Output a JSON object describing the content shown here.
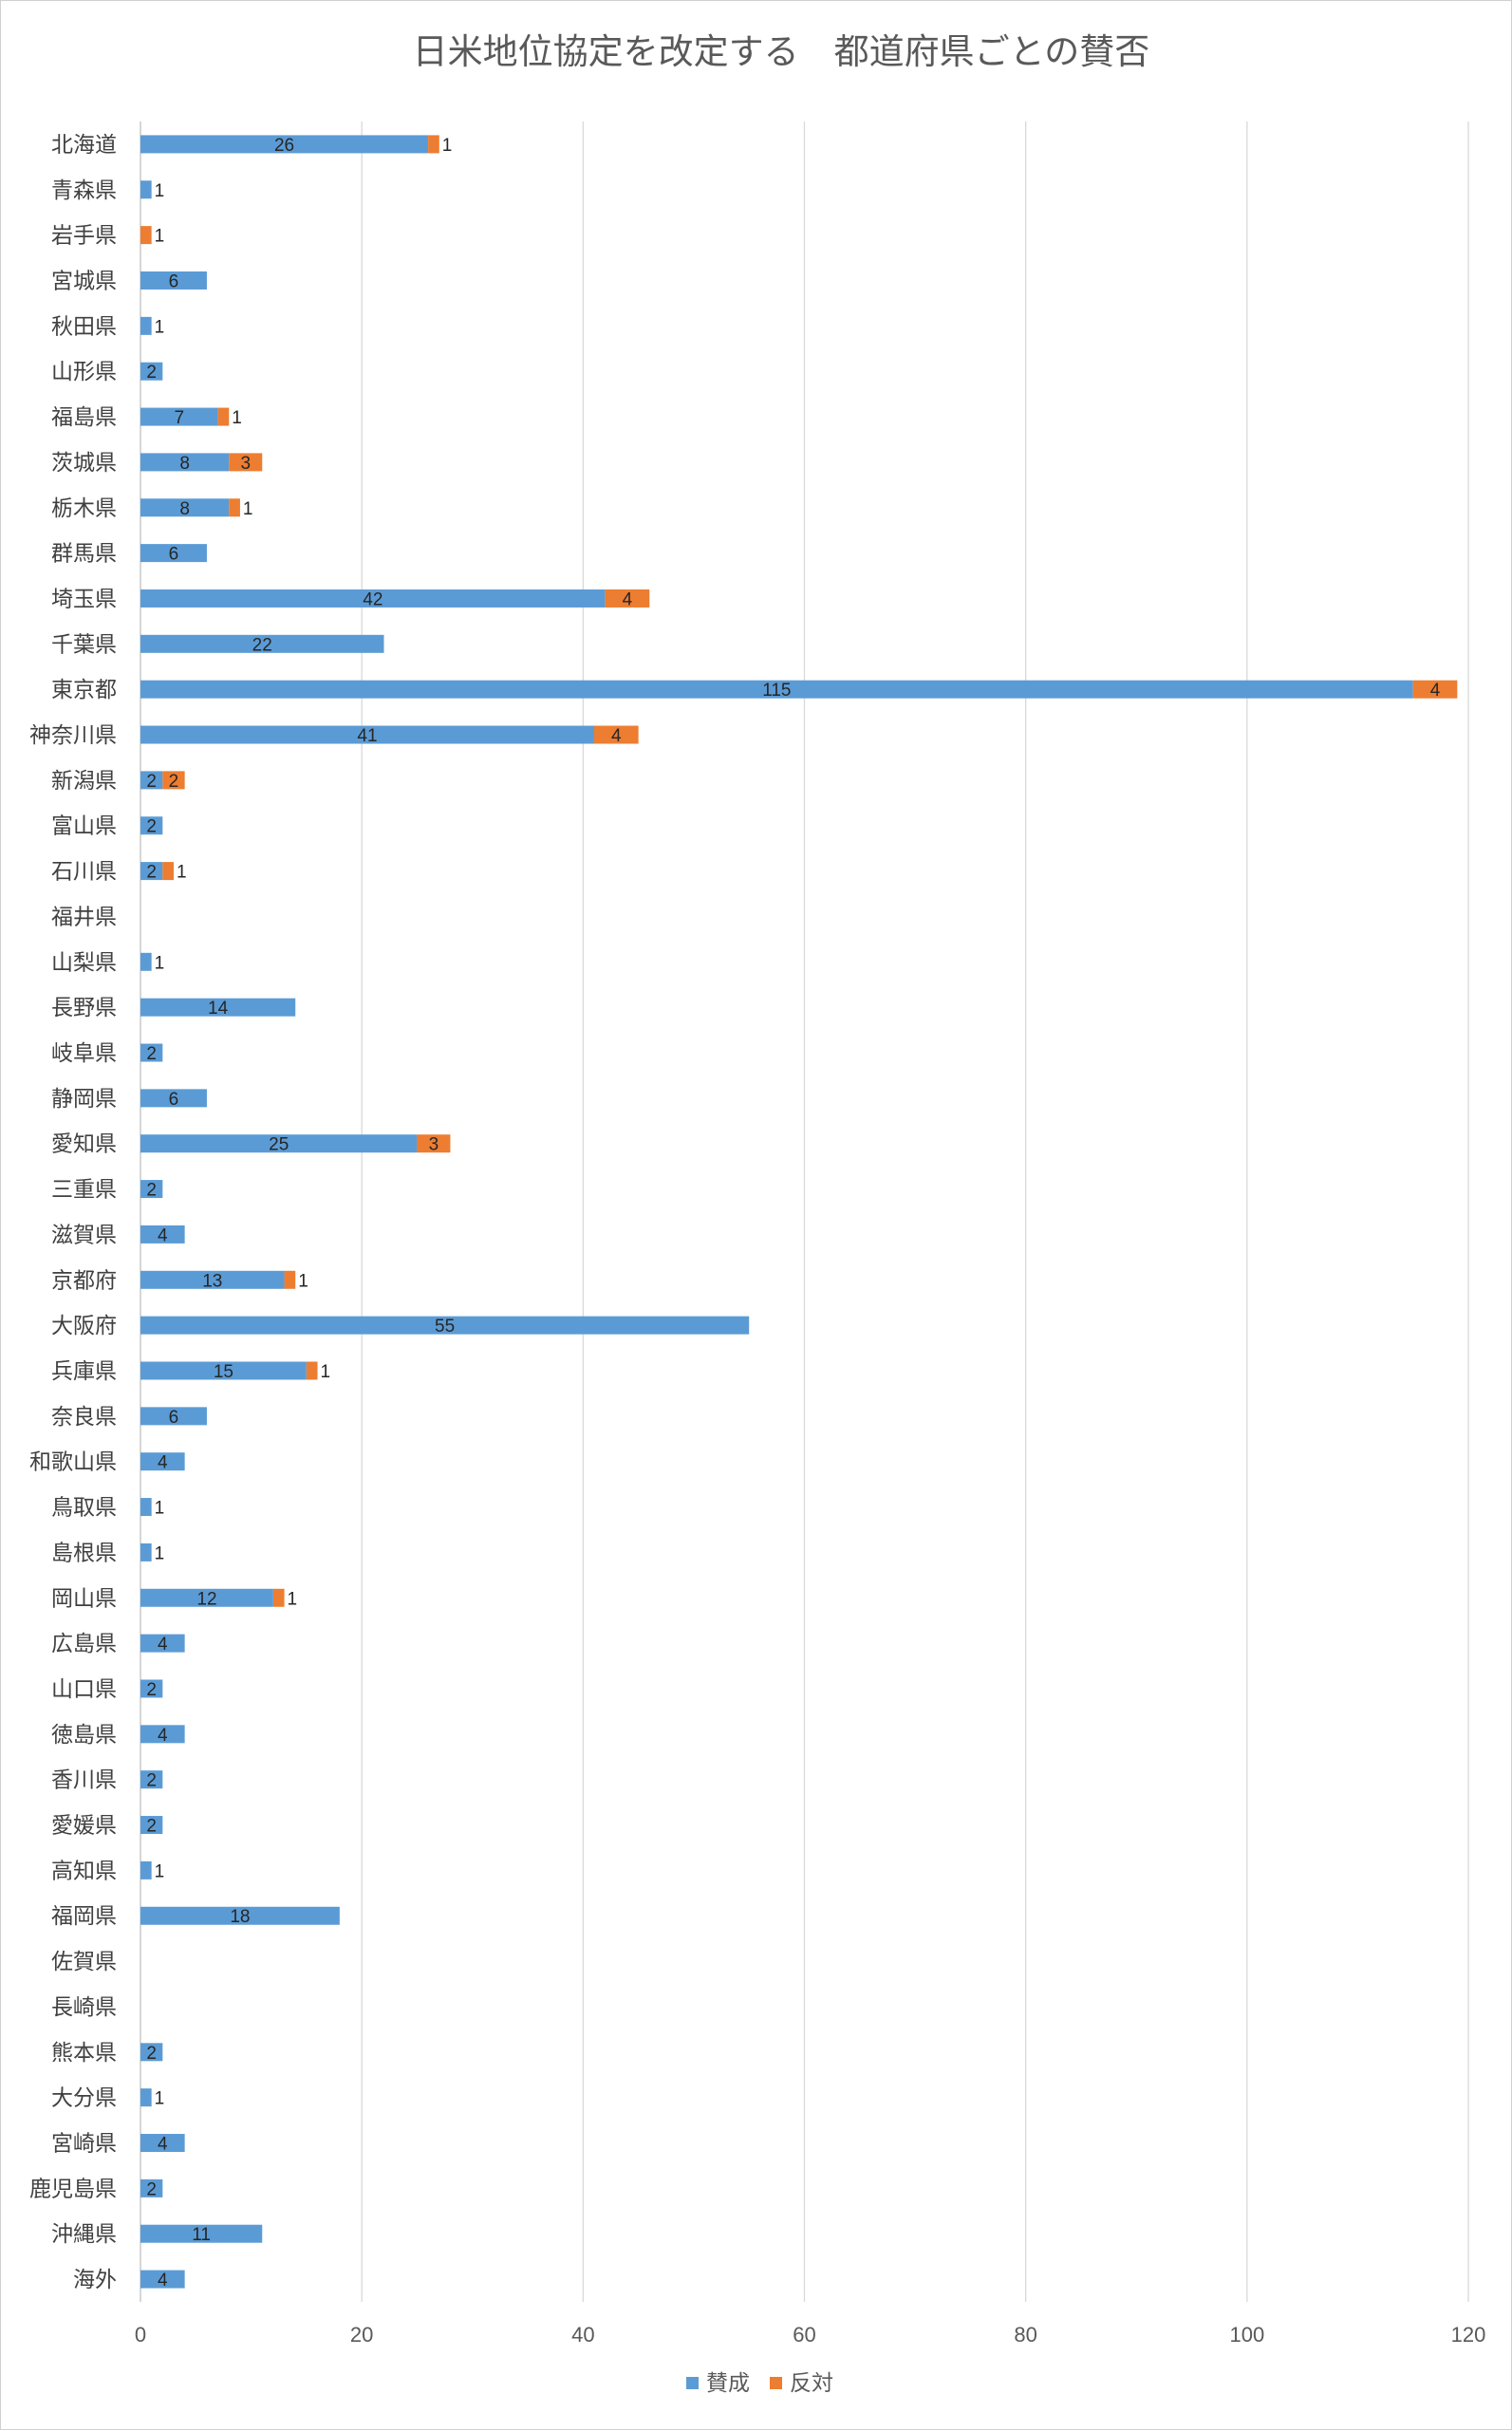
{
  "chart_data": {
    "type": "bar",
    "orientation": "horizontal",
    "stacked": true,
    "title": "日米地位協定を改定する　都道府県ごとの賛否",
    "categories": [
      "北海道",
      "青森県",
      "岩手県",
      "宮城県",
      "秋田県",
      "山形県",
      "福島県",
      "茨城県",
      "栃木県",
      "群馬県",
      "埼玉県",
      "千葉県",
      "東京都",
      "神奈川県",
      "新潟県",
      "富山県",
      "石川県",
      "福井県",
      "山梨県",
      "長野県",
      "岐阜県",
      "静岡県",
      "愛知県",
      "三重県",
      "滋賀県",
      "京都府",
      "大阪府",
      "兵庫県",
      "奈良県",
      "和歌山県",
      "鳥取県",
      "島根県",
      "岡山県",
      "広島県",
      "山口県",
      "徳島県",
      "香川県",
      "愛媛県",
      "高知県",
      "福岡県",
      "佐賀県",
      "長崎県",
      "熊本県",
      "大分県",
      "宮崎県",
      "鹿児島県",
      "沖縄県",
      "海外"
    ],
    "series": [
      {
        "name": "賛成",
        "color": "#5b9bd5",
        "values": [
          26,
          1,
          0,
          6,
          1,
          2,
          7,
          8,
          8,
          6,
          42,
          22,
          115,
          41,
          2,
          2,
          2,
          0,
          1,
          14,
          2,
          6,
          25,
          2,
          4,
          13,
          55,
          15,
          6,
          4,
          1,
          1,
          12,
          4,
          2,
          4,
          2,
          2,
          1,
          18,
          0,
          0,
          2,
          1,
          4,
          2,
          11,
          4
        ]
      },
      {
        "name": "反対",
        "color": "#ed7d31",
        "values": [
          1,
          0,
          1,
          0,
          0,
          0,
          1,
          3,
          1,
          0,
          4,
          0,
          4,
          4,
          2,
          0,
          1,
          0,
          0,
          0,
          0,
          0,
          3,
          0,
          0,
          1,
          0,
          1,
          0,
          0,
          0,
          0,
          1,
          0,
          0,
          0,
          0,
          0,
          0,
          0,
          0,
          0,
          0,
          0,
          0,
          0,
          0,
          0
        ]
      }
    ],
    "xlim": [
      0,
      120
    ],
    "xticks": [
      0,
      20,
      40,
      60,
      80,
      100,
      120
    ],
    "grid": true,
    "legend": "bottom"
  }
}
